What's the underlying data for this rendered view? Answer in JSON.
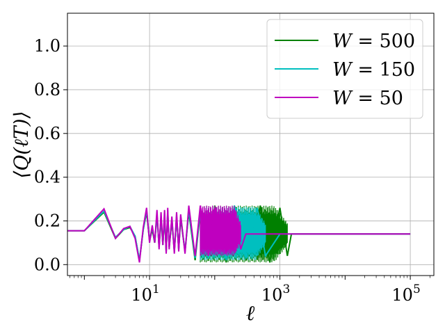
{
  "chart_data": {
    "type": "line",
    "xscale": "log",
    "xlim": [
      0.55,
      230000
    ],
    "ylim": [
      -0.05,
      1.15
    ],
    "xticks": [
      10,
      1000,
      100000
    ],
    "xtick_labels": [
      {
        "base": "10",
        "exp": "1"
      },
      {
        "base": "10",
        "exp": "3"
      },
      {
        "base": "10",
        "exp": "5"
      }
    ],
    "yticks": [
      0.0,
      0.2,
      0.4,
      0.6,
      0.8,
      1.0
    ],
    "ytick_labels": [
      "0.0",
      "0.2",
      "0.4",
      "0.6",
      "0.8",
      "1.0"
    ],
    "xlabel": "ℓ",
    "ylabel": "⟨Q(ℓT)⟩",
    "grid": true,
    "legend_position": "top-right",
    "series": [
      {
        "name": "W = 500",
        "legend": {
          "var": "W",
          "eq": "=",
          "val": "500"
        },
        "color": "#008000",
        "x": [
          0.55,
          1,
          2,
          3,
          4,
          5,
          6,
          7,
          8,
          9,
          10,
          11,
          12,
          13,
          14,
          15,
          16,
          17,
          18,
          19,
          20,
          22,
          24,
          26,
          28,
          30,
          35,
          40,
          50,
          60,
          80,
          100,
          150,
          200,
          300,
          500,
          700,
          1000,
          1300,
          1500,
          2000,
          5000,
          10000,
          50000,
          100000
        ],
        "y": [
          0.155,
          0.155,
          0.24,
          0.12,
          0.16,
          0.17,
          0.13,
          0.02,
          0.16,
          0.24,
          0.11,
          0.16,
          0.1,
          0.23,
          0.08,
          0.21,
          0.09,
          0.22,
          0.06,
          0.24,
          0.08,
          0.2,
          0.06,
          0.22,
          0.07,
          0.21,
          0.06,
          0.24,
          0.02,
          0.24,
          0.03,
          0.27,
          0.01,
          0.27,
          0.02,
          0.27,
          0.01,
          0.26,
          0.04,
          0.14,
          0.14,
          0.14,
          0.14,
          0.14,
          0.14
        ],
        "band_from": 60,
        "band_to": 1300,
        "band_low": 0.01,
        "band_high": 0.27
      },
      {
        "name": "W = 150",
        "legend": {
          "var": "W",
          "eq": "=",
          "val": "150"
        },
        "color": "#00bfbf",
        "x": [
          0.55,
          1,
          2,
          3,
          4,
          5,
          6,
          7,
          8,
          9,
          10,
          11,
          12,
          13,
          14,
          15,
          16,
          17,
          18,
          19,
          20,
          22,
          24,
          26,
          28,
          30,
          35,
          40,
          50,
          60,
          80,
          100,
          150,
          200,
          300,
          450,
          600,
          1000,
          2000,
          5000,
          10000,
          50000,
          100000
        ],
        "y": [
          0.155,
          0.155,
          0.245,
          0.125,
          0.16,
          0.175,
          0.13,
          0.02,
          0.16,
          0.25,
          0.11,
          0.17,
          0.1,
          0.23,
          0.08,
          0.22,
          0.09,
          0.23,
          0.06,
          0.25,
          0.08,
          0.21,
          0.06,
          0.22,
          0.07,
          0.22,
          0.06,
          0.25,
          0.03,
          0.25,
          0.03,
          0.26,
          0.02,
          0.27,
          0.03,
          0.26,
          0.04,
          0.14,
          0.14,
          0.14,
          0.14,
          0.14,
          0.14
        ],
        "band_from": 60,
        "band_to": 600,
        "band_low": 0.02,
        "band_high": 0.265
      },
      {
        "name": "W = 50",
        "legend": {
          "var": "W",
          "eq": "=",
          "val": "50"
        },
        "color": "#bf00bf",
        "x": [
          0.55,
          1,
          2,
          3,
          4,
          5,
          6,
          7,
          8,
          9,
          10,
          11,
          12,
          13,
          14,
          15,
          16,
          17,
          18,
          19,
          20,
          22,
          24,
          26,
          28,
          30,
          35,
          40,
          50,
          60,
          80,
          100,
          150,
          200,
          250,
          300,
          500,
          1000,
          5000,
          10000,
          50000,
          100000
        ],
        "y": [
          0.155,
          0.155,
          0.255,
          0.12,
          0.165,
          0.175,
          0.12,
          0.01,
          0.17,
          0.26,
          0.1,
          0.18,
          0.1,
          0.25,
          0.07,
          0.24,
          0.09,
          0.25,
          0.05,
          0.26,
          0.07,
          0.22,
          0.05,
          0.24,
          0.06,
          0.23,
          0.05,
          0.27,
          0.04,
          0.27,
          0.04,
          0.26,
          0.05,
          0.25,
          0.07,
          0.14,
          0.14,
          0.14,
          0.14,
          0.14,
          0.14,
          0.14
        ],
        "band_from": 60,
        "band_to": 250,
        "band_low": 0.04,
        "band_high": 0.27
      }
    ]
  }
}
